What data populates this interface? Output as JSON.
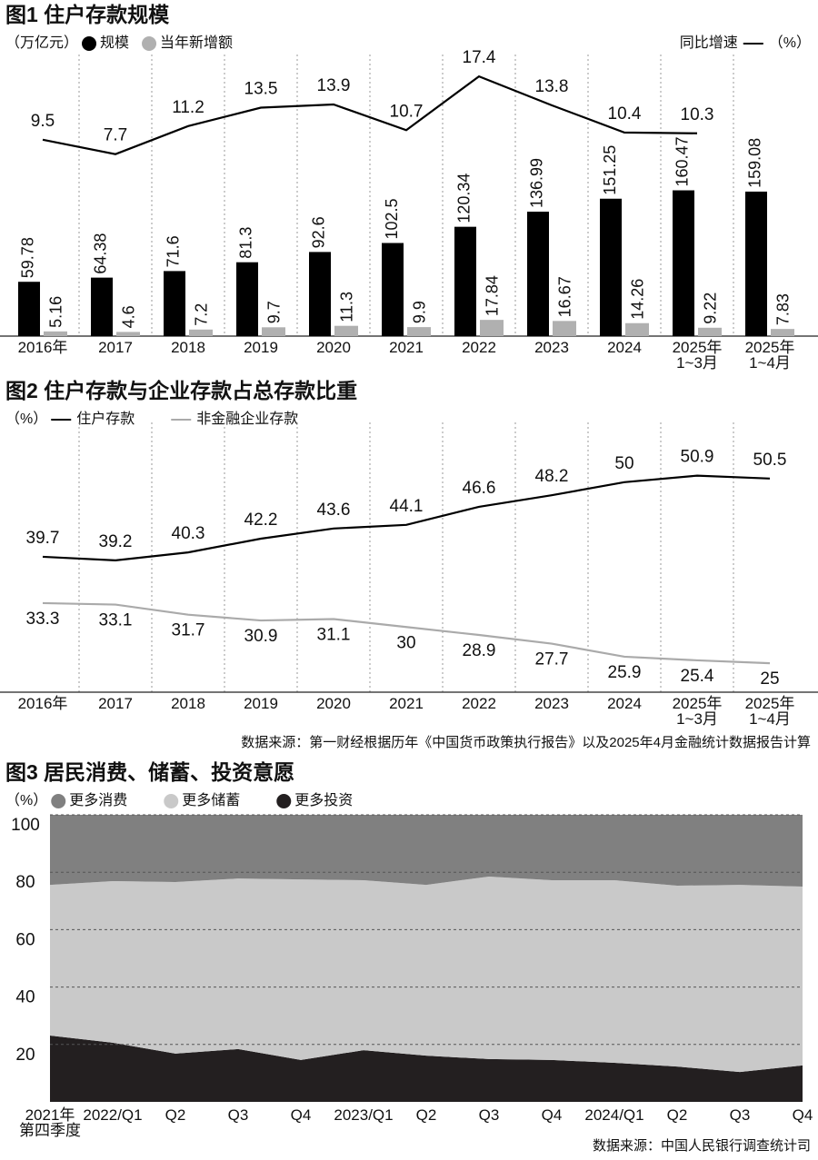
{
  "chart_data": [
    {
      "type": "bar",
      "title": "图1 住户存款规模",
      "unit": "（万亿元）",
      "y2_unit": "（%）",
      "categories": [
        "2016年",
        "2017",
        "2018",
        "2019",
        "2020",
        "2021",
        "2022",
        "2023",
        "2024",
        "2025年\n1~3月",
        "2025年\n1~4月"
      ],
      "series": [
        {
          "name": "规模",
          "color": "#000000",
          "values": [
            59.78,
            64.38,
            71.6,
            81.3,
            92.6,
            102.5,
            120.34,
            136.99,
            151.25,
            160.47,
            159.08
          ]
        },
        {
          "name": "当年新增额",
          "color": "#b0b0b0",
          "values": [
            5.16,
            4.6,
            7.2,
            9.7,
            11.3,
            9.9,
            17.84,
            16.67,
            14.26,
            9.22,
            7.83
          ]
        },
        {
          "name": "同比增速",
          "type": "line",
          "axis": "y2",
          "color": "#000000",
          "values": [
            9.5,
            7.7,
            11.2,
            13.5,
            13.9,
            10.7,
            17.4,
            13.8,
            10.4,
            10.3,
            null
          ]
        }
      ],
      "ylim": [
        0,
        300
      ],
      "y2lim": [
        -15,
        19
      ]
    },
    {
      "type": "line",
      "title": "图2 住户存款与企业存款占总存款比重",
      "unit": "（%）",
      "categories": [
        "2016年",
        "2017",
        "2018",
        "2019",
        "2020",
        "2021",
        "2022",
        "2023",
        "2024",
        "2025年\n1~3月",
        "2025年\n1~4月"
      ],
      "series": [
        {
          "name": "住户存款",
          "color": "#000000",
          "values": [
            39.7,
            39.2,
            40.3,
            42.2,
            43.6,
            44.1,
            46.6,
            48.2,
            50,
            50.9,
            50.5
          ]
        },
        {
          "name": "非金融企业存款",
          "color": "#aaaaaa",
          "values": [
            33.3,
            33.1,
            31.7,
            30.9,
            31.1,
            30,
            28.9,
            27.7,
            25.9,
            25.4,
            25
          ]
        }
      ],
      "ylim": [
        21,
        57
      ],
      "source": "数据来源：第一财经根据历年《中国货币政策执行报告》以及2025年4月金融统计数据报告计算"
    },
    {
      "type": "area",
      "stacked": true,
      "title": "图3 居民消费、储蓄、投资意愿",
      "unit": "（%）",
      "categories": [
        "2021年\n第四季度",
        "2022/Q1",
        "Q2",
        "Q3",
        "Q4",
        "2023/Q1",
        "Q2",
        "Q3",
        "Q4",
        "2024/Q1",
        "Q2",
        "Q3",
        "Q4"
      ],
      "series": [
        {
          "name": "更多消费",
          "color": "#808080",
          "values": [
            24.4,
            23.1,
            23.4,
            22.2,
            22.5,
            22.8,
            24.4,
            21.5,
            22.8,
            22.8,
            24.7,
            24.4,
            25
          ]
        },
        {
          "name": "更多储蓄",
          "color": "#c9c9c9",
          "values": [
            52.5,
            56.3,
            59.8,
            59.4,
            62.9,
            59.2,
            59.5,
            63.6,
            62.6,
            63.6,
            63,
            65.2,
            62.3
          ]
        },
        {
          "name": "更多投资",
          "color": "#231f20",
          "values": [
            23.1,
            20.6,
            16.8,
            18.4,
            14.6,
            18,
            16.1,
            14.9,
            14.6,
            13.6,
            12.3,
            10.4,
            12.7
          ]
        }
      ],
      "ylim": [
        0,
        100
      ],
      "yticks": [
        20,
        40,
        60,
        80,
        100
      ],
      "grid": true,
      "source": "数据来源：中国人民银行调查统计司"
    }
  ]
}
